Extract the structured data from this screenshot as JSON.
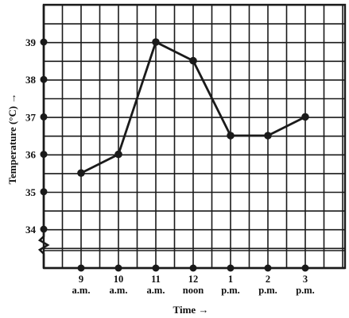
{
  "chart_data": {
    "type": "line",
    "title": "",
    "xlabel": "Time →",
    "ylabel": "Temperature (°C) →",
    "categories": [
      "9 a.m.",
      "10 a.m.",
      "11 a.m.",
      "12 noon",
      "1 p.m.",
      "2 p.m.",
      "3 p.m."
    ],
    "x_tick_labels": [
      {
        "top": "9",
        "bottom": "a.m."
      },
      {
        "top": "10",
        "bottom": "a.m."
      },
      {
        "top": "11",
        "bottom": "a.m."
      },
      {
        "top": "12",
        "bottom": "noon"
      },
      {
        "top": "1",
        "bottom": "p.m."
      },
      {
        "top": "2",
        "bottom": "p.m."
      },
      {
        "top": "3",
        "bottom": "p.m."
      }
    ],
    "y_ticks": [
      34,
      35,
      36,
      37,
      38,
      39
    ],
    "ylim": [
      33,
      40
    ],
    "axis_break": true,
    "grid": true,
    "series": [
      {
        "values": [
          35.5,
          36,
          39,
          38.5,
          36.5,
          36.5,
          37
        ]
      }
    ],
    "colors": {
      "line": "#1a1a1a",
      "grid": "#1a1a1a",
      "background": "#ffffff"
    }
  }
}
